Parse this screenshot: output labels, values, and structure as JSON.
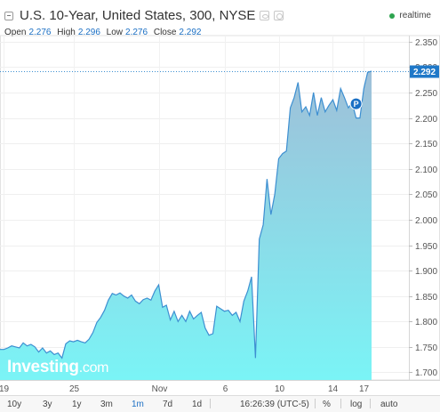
{
  "header": {
    "title": "U.S. 10-Year, United States, 300, NYSE",
    "realtime": "realtime",
    "open_label": "Open",
    "open": "2.276",
    "high_label": "High",
    "high": "2.296",
    "low_label": "Low",
    "low": "2.276",
    "close_label": "Close",
    "close": "2.292"
  },
  "logo": {
    "main": "Investing",
    "suffix": ".com"
  },
  "last_price_label": "2.292",
  "marker_label": "P",
  "toolbar": {
    "ranges": [
      "10y",
      "3y",
      "1y",
      "3m",
      "1m",
      "7d",
      "1d"
    ],
    "active": "1m",
    "time": "16:26:39 (UTC-5)",
    "percent": "%",
    "log": "log",
    "auto": "auto"
  },
  "colors": {
    "line": "#3d8fd1",
    "fill_top": "#9fbfd8",
    "fill_bottom": "#7af4f6",
    "accent": "#1a6fc4",
    "last_price_bg": "#1f78c8"
  },
  "chart_data": {
    "type": "area",
    "title": "U.S. 10-Year, United States, 300, NYSE",
    "x_ticks": [
      "19",
      "25",
      "Nov",
      "6",
      "10",
      "14",
      "17"
    ],
    "x_tick_index": [
      1,
      19,
      41,
      58,
      72,
      86,
      94
    ],
    "y_ticks": [
      "2.350",
      "2.300",
      "2.250",
      "2.200",
      "2.150",
      "2.100",
      "2.050",
      "2.000",
      "1.950",
      "1.900",
      "1.850",
      "1.800",
      "1.750",
      "1.700"
    ],
    "ylim": [
      1.685,
      2.362
    ],
    "last_price": 2.292,
    "series": [
      {
        "values": [
          1.745,
          1.745,
          1.748,
          1.752,
          1.75,
          1.748,
          1.758,
          1.752,
          1.755,
          1.75,
          1.74,
          1.748,
          1.738,
          1.742,
          1.735,
          1.738,
          1.728,
          1.756,
          1.762,
          1.76,
          1.763,
          1.76,
          1.758,
          1.765,
          1.778,
          1.798,
          1.808,
          1.822,
          1.842,
          1.855,
          1.852,
          1.856,
          1.85,
          1.846,
          1.852,
          1.84,
          1.835,
          1.843,
          1.846,
          1.842,
          1.86,
          1.872,
          1.828,
          1.832,
          1.803,
          1.82,
          1.8,
          1.812,
          1.8,
          1.82,
          1.805,
          1.812,
          1.818,
          1.787,
          1.773,
          1.776,
          1.83,
          1.825,
          1.82,
          1.822,
          1.812,
          1.818,
          1.8,
          1.84,
          1.86,
          1.888,
          1.728,
          1.962,
          1.99,
          2.08,
          2.01,
          2.05,
          2.12,
          2.13,
          2.135,
          2.22,
          2.24,
          2.27,
          2.212,
          2.222,
          2.205,
          2.25,
          2.205,
          2.24,
          2.212,
          2.225,
          2.236,
          2.215,
          2.258,
          2.24,
          2.22,
          2.23,
          2.2,
          2.2,
          2.258,
          2.29,
          2.292
        ]
      }
    ]
  }
}
